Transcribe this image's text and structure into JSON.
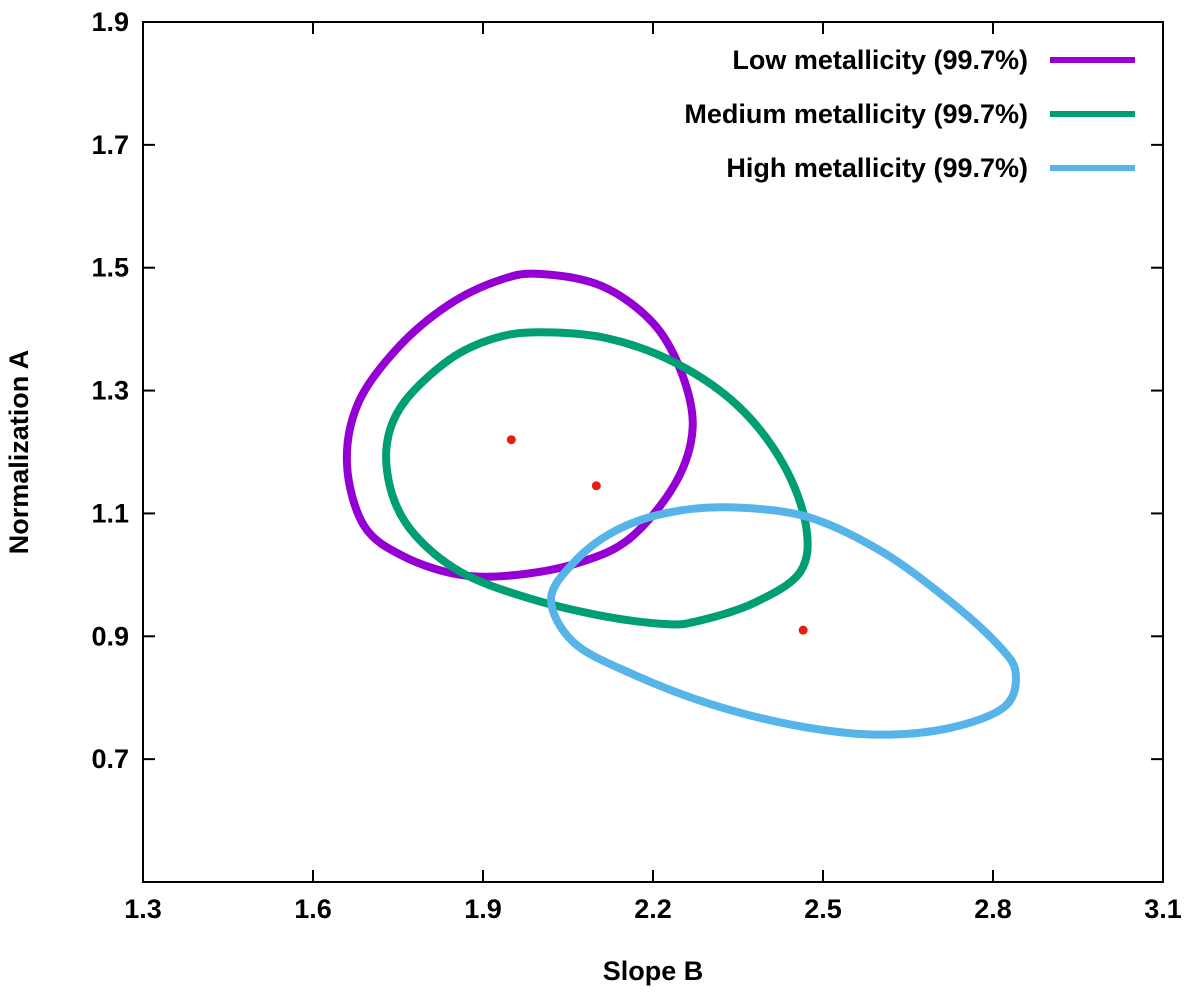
{
  "chart_data": {
    "type": "scatter",
    "title": "",
    "xlabel": "Slope B",
    "ylabel": "Normalization A",
    "xlim": [
      1.3,
      3.1
    ],
    "ylim": [
      0.5,
      1.9
    ],
    "xticks": [
      "1.3",
      "1.6",
      "1.9",
      "2.2",
      "2.5",
      "2.8",
      "3.1"
    ],
    "yticks": [
      "0.7",
      "0.9",
      "1.1",
      "1.3",
      "1.5",
      "1.7",
      "1.9"
    ],
    "legend_position": "top-right",
    "series": [
      {
        "name": "Low metallicity (99.7%)",
        "color": "#9400d3",
        "best_fit": {
          "x": 1.95,
          "y": 1.22
        },
        "contour": [
          [
            2.0,
            1.49
          ],
          [
            2.11,
            1.47
          ],
          [
            2.2,
            1.41
          ],
          [
            2.25,
            1.33
          ],
          [
            2.27,
            1.24
          ],
          [
            2.24,
            1.15
          ],
          [
            2.16,
            1.06
          ],
          [
            2.07,
            1.02
          ],
          [
            1.96,
            1.0
          ],
          [
            1.86,
            1.0
          ],
          [
            1.76,
            1.03
          ],
          [
            1.69,
            1.08
          ],
          [
            1.66,
            1.18
          ],
          [
            1.68,
            1.28
          ],
          [
            1.75,
            1.37
          ],
          [
            1.84,
            1.44
          ],
          [
            1.93,
            1.48
          ]
        ]
      },
      {
        "name": "Medium metallicity (99.7%)",
        "color": "#009e73",
        "best_fit": {
          "x": 2.1,
          "y": 1.145
        },
        "contour": [
          [
            2.0,
            1.395
          ],
          [
            2.12,
            1.385
          ],
          [
            2.24,
            1.345
          ],
          [
            2.35,
            1.275
          ],
          [
            2.43,
            1.18
          ],
          [
            2.47,
            1.08
          ],
          [
            2.46,
            1.005
          ],
          [
            2.38,
            0.955
          ],
          [
            2.28,
            0.925
          ],
          [
            2.22,
            0.92
          ],
          [
            2.1,
            0.935
          ],
          [
            1.97,
            0.965
          ],
          [
            1.86,
            1.005
          ],
          [
            1.78,
            1.065
          ],
          [
            1.74,
            1.13
          ],
          [
            1.73,
            1.21
          ],
          [
            1.76,
            1.28
          ],
          [
            1.84,
            1.35
          ],
          [
            1.92,
            1.385
          ]
        ]
      },
      {
        "name": "High metallicity (99.7%)",
        "color": "#56b4e9",
        "best_fit": {
          "x": 2.465,
          "y": 0.91
        },
        "contour": [
          [
            2.33,
            1.11
          ],
          [
            2.47,
            1.095
          ],
          [
            2.6,
            1.04
          ],
          [
            2.72,
            0.96
          ],
          [
            2.81,
            0.885
          ],
          [
            2.84,
            0.84
          ],
          [
            2.82,
            0.785
          ],
          [
            2.72,
            0.75
          ],
          [
            2.59,
            0.74
          ],
          [
            2.45,
            0.755
          ],
          [
            2.3,
            0.79
          ],
          [
            2.16,
            0.84
          ],
          [
            2.06,
            0.89
          ],
          [
            2.02,
            0.96
          ],
          [
            2.06,
            1.02
          ],
          [
            2.13,
            1.07
          ],
          [
            2.22,
            1.1
          ]
        ]
      }
    ]
  }
}
